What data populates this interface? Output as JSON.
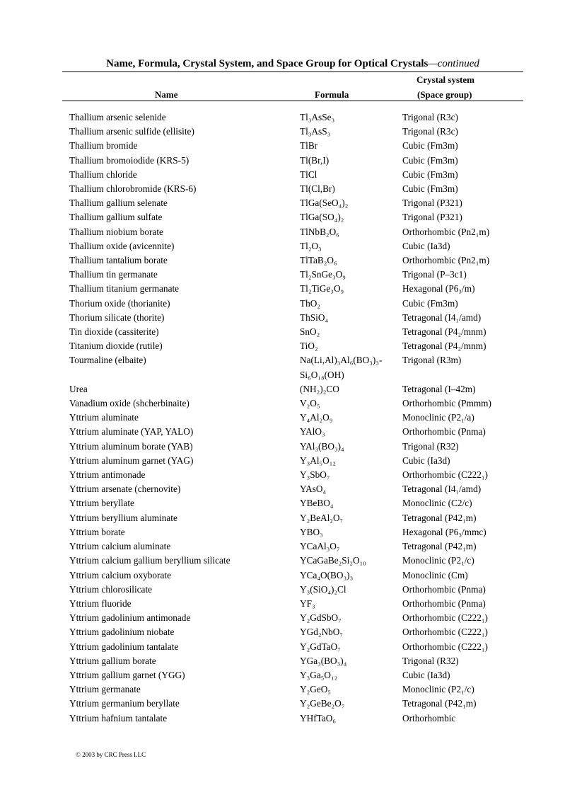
{
  "title": {
    "main": "Name, Formula, Crystal System, and Space Group for Optical Crystals",
    "suffix": "—continued"
  },
  "columns": {
    "name": "Name",
    "formula": "Formula",
    "crystal_line1": "Crystal system",
    "crystal_line2": "(Space group)"
  },
  "rows": [
    {
      "name": "Thallium arsenic selenide",
      "formula": "Tl₃AsSe₃",
      "crystal": "Trigonal (R3c)"
    },
    {
      "name": "Thallium arsenic sulfide (ellisite)",
      "formula": "Tl₃AsS₃",
      "crystal": "Trigonal (R3c)"
    },
    {
      "name": "Thallium bromide",
      "formula": "TlBr",
      "crystal": "Cubic (Fm3m)"
    },
    {
      "name": "Thallium bromoiodide (KRS-5)",
      "formula": "Tl(Br,I)",
      "crystal": "Cubic (Fm3m)"
    },
    {
      "name": "Thallium chloride",
      "formula": "TlCl",
      "crystal": "Cubic (Fm3m)"
    },
    {
      "name": "Thallium chlorobromide (KRS-6)",
      "formula": "Tl(Cl,Br)",
      "crystal": "Cubic (Fm3m)"
    },
    {
      "name": "Thallium gallium selenate",
      "formula": "TlGa(SeO₄)₂",
      "crystal": "Trigonal (P321)"
    },
    {
      "name": "Thallium gallium sulfate",
      "formula": "TlGa(SO₄)₂",
      "crystal": "Trigonal (P321)"
    },
    {
      "name": "Thallium niobium borate",
      "formula": "TlNbB₂O₆",
      "crystal": "Orthorhombic (Pn2₁m)"
    },
    {
      "name": "Thallium oxide (avicennite)",
      "formula": "Tl₂O₃",
      "crystal": "Cubic (Ia3d)"
    },
    {
      "name": "Thallium tantalium borate",
      "formula": "TlTaB₂O₆",
      "crystal": "Orthorhombic (Pn2₁m)"
    },
    {
      "name": "Thallium tin germanate",
      "formula": "Tl₂SnGe₃O₉",
      "crystal": "Trigonal (P–3c1)"
    },
    {
      "name": "Thallium titanium germanate",
      "formula": "Tl₂TiGe₃O₉",
      "crystal": "Hexagonal (P6₃/m)"
    },
    {
      "name": "Thorium oxide (thorianite)",
      "formula": "ThO₂",
      "crystal": "Cubic (Fm3m)"
    },
    {
      "name": "Thorium silicate (thorite)",
      "formula": "ThSiO₄",
      "crystal": "Tetragonal (I4₁/amd)"
    },
    {
      "name": "Tin dioxide (cassiterite)",
      "formula": "SnO₂",
      "crystal": "Tetragonal (P4₂/mnm)"
    },
    {
      "name": "Titanium dioxide (rutile)",
      "formula": "TiO₂",
      "crystal": "Tetragonal (P4₂/mnm)"
    },
    {
      "name": "Tourmaline (elbaite)",
      "formula": "Na(Li,Al)₃Al₆(BO₃)₃-\nSi₆O₁₈(OH)",
      "crystal": "Trigonal (R3m)"
    },
    {
      "name": "Urea",
      "formula": "(NH₂)₂CO",
      "crystal": "Tetragonal (I–42m)"
    },
    {
      "name": "Vanadium oxide (shcherbinaite)",
      "formula": "V₂O₅",
      "crystal": "Orthorhombic (Pmmm)"
    },
    {
      "name": "Yttrium aluminate",
      "formula": "Y₄Al₂O₉",
      "crystal": "Monoclinic (P2₁/a)"
    },
    {
      "name": "Yttrium aluminate (YAP, YALO)",
      "formula": "YAlO₃",
      "crystal": "Orthorhombic (Pnma)"
    },
    {
      "name": "Yttrium aluminum borate (YAB)",
      "formula": "YAl₃(BO₃)₄",
      "crystal": "Trigonal (R32)"
    },
    {
      "name": "Yttrium aluminum garnet (YAG)",
      "formula": "Y₃Al₅O₁₂",
      "crystal": "Cubic (Ia3d)"
    },
    {
      "name": "Yttrium antimonade",
      "formula": "Y₃SbO₇",
      "crystal": "Orthorhombic (C222₁)"
    },
    {
      "name": "Yttrium arsenate (chernovite)",
      "formula": "YAsO₄",
      "crystal": "Tetragonal (I4₁/amd)"
    },
    {
      "name": "Yttrium beryllate",
      "formula": "YBeBO₄",
      "crystal": "Monoclinic (C2/c)"
    },
    {
      "name": "Yttrium beryllium aluminate",
      "formula": "Y₂BeAl₂O₇",
      "crystal": "Tetragonal (P42₁m)"
    },
    {
      "name": "Yttrium borate",
      "formula": "YBO₃",
      "crystal": "Hexagonal (P6₃/mmc)"
    },
    {
      "name": "Yttrium calcium aluminate",
      "formula": "YCaAl₃O₇",
      "crystal": "Tetragonal (P42₁m)"
    },
    {
      "name": "Yttrium calcium gallium beryllium silicate",
      "formula": "YCaGaBe₂Si₂O₁₀",
      "crystal": "Monoclinic (P2₁/c)"
    },
    {
      "name": "Yttrium calcium oxyborate",
      "formula": "YCa₄O(BO₃)₃",
      "crystal": "Monoclinic (Cm)"
    },
    {
      "name": "Yttrium chlorosilicate",
      "formula": "Y₃(SiO₄)₂Cl",
      "crystal": "Orthorhombic (Pnma)"
    },
    {
      "name": "Yttrium fluoride",
      "formula": "YF₃",
      "crystal": "Orthorhombic (Pnma)"
    },
    {
      "name": "Yttrium gadolinium antimonade",
      "formula": "Y₂GdSbO₇",
      "crystal": "Orthorhombic (C222₁)"
    },
    {
      "name": "Yttrium gadolinium niobate",
      "formula": "YGd₂NbO₇",
      "crystal": "Orthorhombic (C222₁)"
    },
    {
      "name": "Yttrium gadolinium tantalate",
      "formula": "Y₂GdTaO₇",
      "crystal": "Orthorhombic (C222₁)"
    },
    {
      "name": "Yttrium gallium borate",
      "formula": "YGa₃(BO₃)₄",
      "crystal": "Trigonal (R32)"
    },
    {
      "name": "Yttrium gallium garnet (YGG)",
      "formula": "Y₃Ga₅O₁₂",
      "crystal": "Cubic (Ia3d)"
    },
    {
      "name": "Yttrium germanate",
      "formula": "Y₂GeO₅",
      "crystal": "Monoclinic (P2₁/c)"
    },
    {
      "name": "Yttrium germanium beryllate",
      "formula": "Y₂GeBe₂O₇",
      "crystal": "Tetragonal (P42₁m)"
    },
    {
      "name": "Yttrium hafnium tantalate",
      "formula": "YHfTaO₆",
      "crystal": "Orthorhombic"
    }
  ],
  "footer": "© 2003 by CRC Press LLC"
}
